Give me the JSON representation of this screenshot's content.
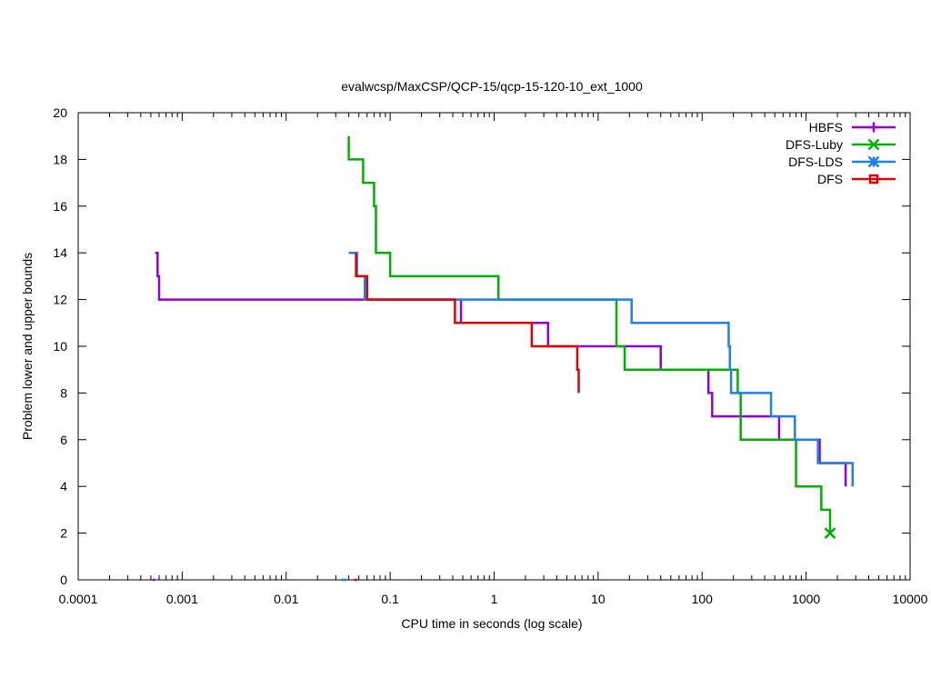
{
  "chart_data": {
    "type": "line",
    "title": "evalwcsp/MaxCSP/QCP-15/qcp-15-120-10_ext_1000",
    "xlabel": "CPU time in seconds (log scale)",
    "ylabel": "Problem lower and upper bounds",
    "x_scale": "log",
    "xlim": [
      0.0001,
      10000
    ],
    "ylim": [
      0,
      20
    ],
    "x_ticks": [
      {
        "value": 0.0001,
        "label": "0.0001"
      },
      {
        "value": 0.001,
        "label": "0.001"
      },
      {
        "value": 0.01,
        "label": "0.01"
      },
      {
        "value": 0.1,
        "label": "0.1"
      },
      {
        "value": 1,
        "label": "1"
      },
      {
        "value": 10,
        "label": "10"
      },
      {
        "value": 100,
        "label": "100"
      },
      {
        "value": 1000,
        "label": "1000"
      },
      {
        "value": 10000,
        "label": "10000"
      }
    ],
    "y_ticks": [
      {
        "value": 0,
        "label": "0"
      },
      {
        "value": 2,
        "label": "2"
      },
      {
        "value": 4,
        "label": "4"
      },
      {
        "value": 6,
        "label": "6"
      },
      {
        "value": 8,
        "label": "8"
      },
      {
        "value": 10,
        "label": "10"
      },
      {
        "value": 12,
        "label": "12"
      },
      {
        "value": 14,
        "label": "14"
      },
      {
        "value": 16,
        "label": "16"
      },
      {
        "value": 18,
        "label": "18"
      },
      {
        "value": 20,
        "label": "20"
      }
    ],
    "grid": false,
    "legend_position": "top-right",
    "series": [
      {
        "name": "HBFS",
        "color": "#9400d3",
        "marker": "plus",
        "upper": [
          [
            0.00055,
            14
          ],
          [
            0.00058,
            14
          ],
          [
            0.00058,
            13
          ],
          [
            0.0006,
            13
          ],
          [
            0.0006,
            12
          ],
          [
            0.48,
            12
          ],
          [
            0.48,
            11
          ],
          [
            3.3,
            11
          ],
          [
            3.3,
            10
          ],
          [
            40,
            10
          ],
          [
            40,
            9
          ],
          [
            115,
            9
          ],
          [
            115,
            8
          ],
          [
            125,
            8
          ],
          [
            125,
            7
          ],
          [
            550,
            7
          ],
          [
            550,
            6
          ],
          [
            1350,
            6
          ],
          [
            1350,
            5
          ],
          [
            2400,
            5
          ],
          [
            2400,
            4
          ]
        ],
        "lower": [
          [
            0.00052,
            0
          ],
          [
            0.00055,
            0
          ]
        ],
        "end_marker": null
      },
      {
        "name": "DFS-Luby",
        "color": "#00b000",
        "marker": "x",
        "upper": [
          [
            0.04,
            19
          ],
          [
            0.04,
            18
          ],
          [
            0.055,
            18
          ],
          [
            0.055,
            17
          ],
          [
            0.07,
            17
          ],
          [
            0.07,
            16
          ],
          [
            0.073,
            16
          ],
          [
            0.073,
            14
          ],
          [
            0.1,
            14
          ],
          [
            0.1,
            13
          ],
          [
            1.1,
            13
          ],
          [
            1.1,
            12
          ],
          [
            15,
            12
          ],
          [
            15,
            10
          ],
          [
            18,
            10
          ],
          [
            18,
            9
          ],
          [
            220,
            9
          ],
          [
            220,
            8
          ],
          [
            235,
            8
          ],
          [
            235,
            6
          ],
          [
            800,
            6
          ],
          [
            800,
            4
          ],
          [
            1400,
            4
          ],
          [
            1400,
            3
          ],
          [
            1700,
            3
          ],
          [
            1700,
            2
          ]
        ],
        "lower": [
          [
            0.034,
            0
          ],
          [
            0.037,
            0
          ]
        ],
        "end_marker": [
          1700,
          2
        ]
      },
      {
        "name": "DFS-LDS",
        "color": "#1e80f0",
        "marker": "star",
        "upper": [
          [
            0.04,
            14
          ],
          [
            0.048,
            14
          ],
          [
            0.048,
            13
          ],
          [
            0.057,
            13
          ],
          [
            0.057,
            12
          ],
          [
            21,
            12
          ],
          [
            21,
            11
          ],
          [
            180,
            11
          ],
          [
            180,
            10
          ],
          [
            185,
            10
          ],
          [
            185,
            9
          ],
          [
            190,
            9
          ],
          [
            190,
            8
          ],
          [
            460,
            8
          ],
          [
            460,
            7
          ],
          [
            780,
            7
          ],
          [
            780,
            6
          ],
          [
            1300,
            6
          ],
          [
            1300,
            5
          ],
          [
            2800,
            5
          ],
          [
            2800,
            4
          ]
        ],
        "lower": [
          [
            0.035,
            0
          ],
          [
            0.038,
            0
          ]
        ],
        "end_marker": null
      },
      {
        "name": "DFS",
        "color": "#e00000",
        "marker": "square",
        "upper": [
          [
            0.047,
            14
          ],
          [
            0.047,
            13
          ],
          [
            0.06,
            13
          ],
          [
            0.06,
            12
          ],
          [
            0.42,
            12
          ],
          [
            0.42,
            11
          ],
          [
            2.3,
            11
          ],
          [
            2.3,
            10
          ],
          [
            6.3,
            10
          ],
          [
            6.3,
            9
          ],
          [
            6.5,
            9
          ],
          [
            6.5,
            8
          ]
        ],
        "lower": [
          [
            0.045,
            0
          ],
          [
            0.048,
            0
          ]
        ],
        "end_marker": null
      }
    ]
  }
}
